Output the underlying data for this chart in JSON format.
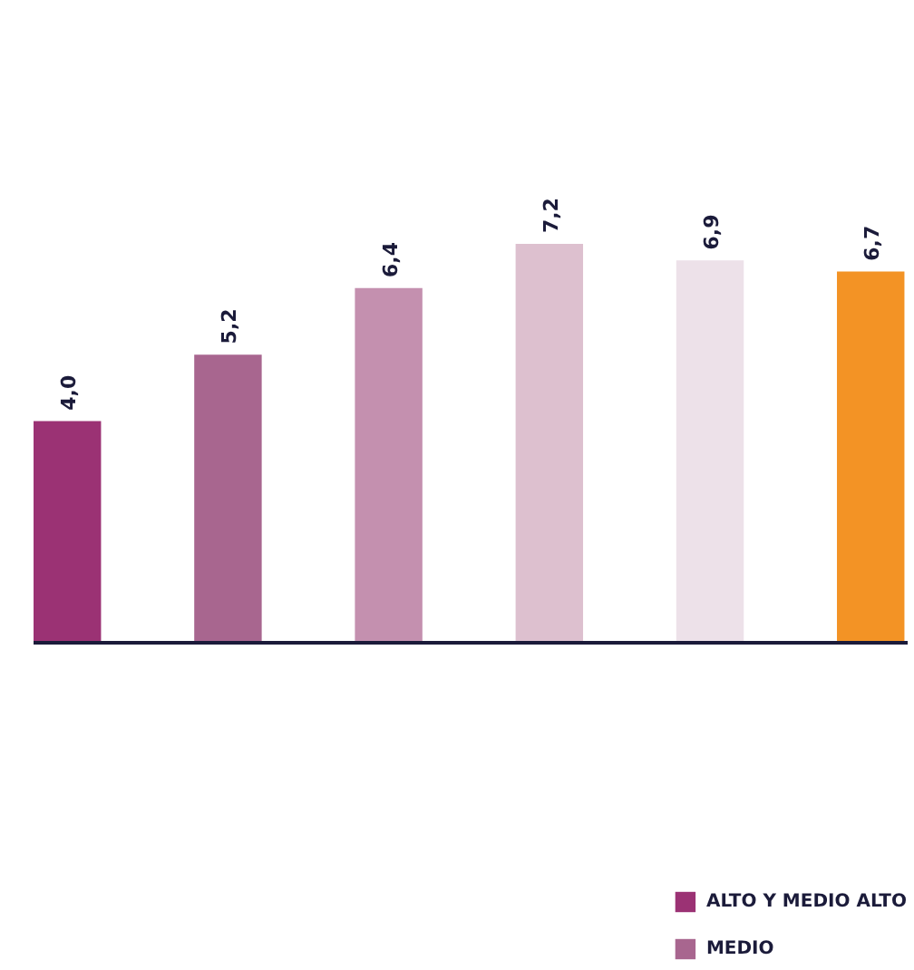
{
  "chart_data": {
    "type": "bar",
    "stacked": true,
    "categories": [
      null,
      null,
      null,
      null,
      null,
      null
    ],
    "series": [
      {
        "name": "ALTO Y MEDIO ALTO",
        "color": "#9b3274",
        "values": [
          4.0,
          null,
          null,
          null,
          null,
          null
        ],
        "value_labels": [
          "4,0",
          null,
          null,
          null,
          null,
          null
        ]
      },
      {
        "name": "MEDIO",
        "color": "#a8668f",
        "values": [
          null,
          5.2,
          null,
          null,
          null,
          null
        ],
        "value_labels": [
          null,
          "5,2",
          null,
          null,
          null,
          null
        ]
      },
      {
        "color": "#c490af",
        "values": [
          null,
          null,
          6.4,
          null,
          null,
          null
        ],
        "value_labels": [
          null,
          null,
          "6,4",
          null,
          null,
          null
        ]
      },
      {
        "color": "#ddc0cf",
        "values": [
          null,
          null,
          null,
          7.2,
          null,
          null
        ],
        "value_labels": [
          null,
          null,
          null,
          "7,2",
          null,
          null
        ]
      },
      {
        "color": "#ede1e9",
        "values": [
          null,
          null,
          null,
          null,
          6.9,
          null
        ],
        "value_labels": [
          null,
          null,
          null,
          null,
          "6,9",
          null
        ]
      },
      {
        "color": "#f39325",
        "values": [
          null,
          null,
          null,
          null,
          null,
          6.7
        ],
        "value_labels": [
          null,
          null,
          null,
          null,
          null,
          "6,7"
        ]
      }
    ],
    "legend": "bottom right",
    "grid": false,
    "tick_labels": false
  }
}
